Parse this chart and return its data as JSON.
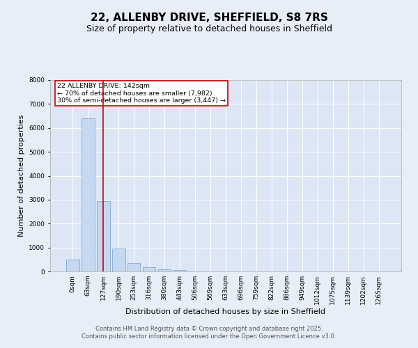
{
  "title": "22, ALLENBY DRIVE, SHEFFIELD, S8 7RS",
  "subtitle": "Size of property relative to detached houses in Sheffield",
  "xlabel": "Distribution of detached houses by size in Sheffield",
  "ylabel": "Number of detached properties",
  "bar_color": "#c5d8f0",
  "bar_edge_color": "#7aadd4",
  "fig_background_color": "#e8eef7",
  "ax_background_color": "#dce6f5",
  "grid_color": "#ffffff",
  "vline_color": "#cc0000",
  "vline_x": 2,
  "annotation_text": "22 ALLENBY DRIVE: 142sqm\n← 70% of detached houses are smaller (7,982)\n30% of semi-detached houses are larger (3,447) →",
  "annotation_box_color": "#cc0000",
  "categories": [
    "0sqm",
    "63sqm",
    "127sqm",
    "190sqm",
    "253sqm",
    "316sqm",
    "380sqm",
    "443sqm",
    "506sqm",
    "569sqm",
    "633sqm",
    "696sqm",
    "759sqm",
    "822sqm",
    "886sqm",
    "949sqm",
    "1012sqm",
    "1075sqm",
    "1139sqm",
    "1202sqm",
    "1265sqm"
  ],
  "values": [
    500,
    6400,
    2950,
    950,
    350,
    175,
    100,
    50,
    0,
    0,
    0,
    0,
    0,
    0,
    0,
    0,
    0,
    0,
    0,
    0,
    0
  ],
  "ylim": [
    0,
    8000
  ],
  "yticks": [
    0,
    1000,
    2000,
    3000,
    4000,
    5000,
    6000,
    7000,
    8000
  ],
  "footer_text": "Contains HM Land Registry data © Crown copyright and database right 2025.\nContains public sector information licensed under the Open Government Licence v3.0.",
  "title_fontsize": 11,
  "subtitle_fontsize": 9,
  "tick_fontsize": 6.5,
  "ylabel_fontsize": 8,
  "xlabel_fontsize": 8,
  "footer_fontsize": 6
}
